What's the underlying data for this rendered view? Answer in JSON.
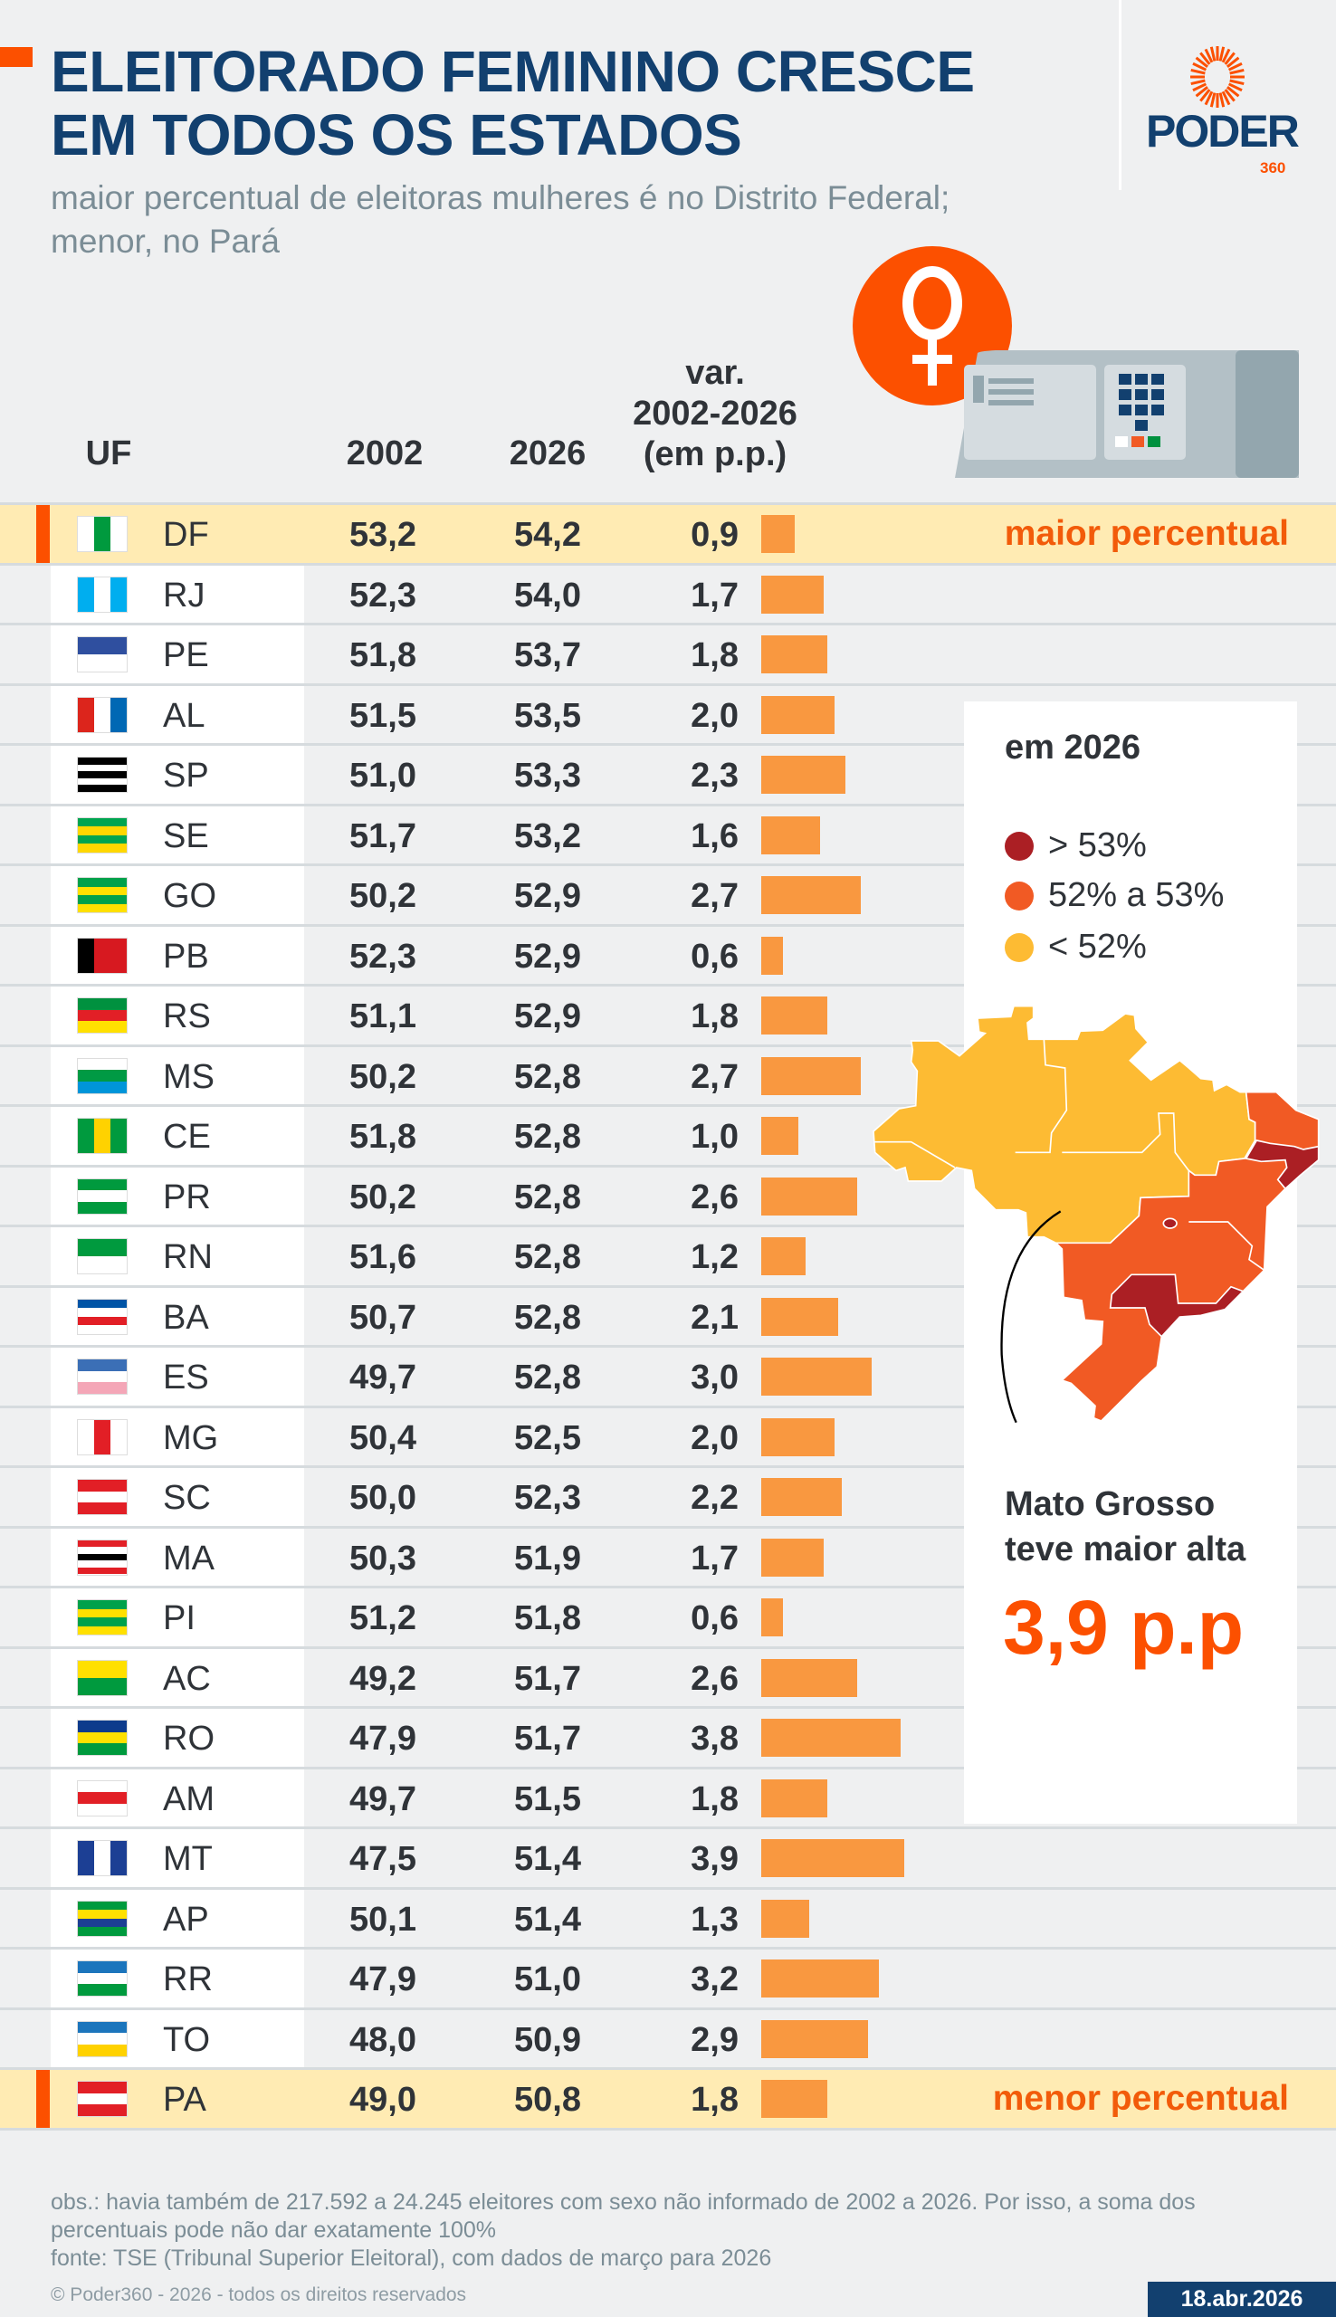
{
  "header": {
    "title_line1": "ELEITORADO FEMININO CRESCE",
    "title_line2": "EM TODOS OS ESTADOS",
    "subtitle": "maior percentual de eleitoras mulheres é no Distrito Federal; menor, no Pará"
  },
  "logo": {
    "name": "PODER",
    "number": "360"
  },
  "colors": {
    "navy": "#12406f",
    "accent": "#fc5000",
    "bar": "#f99840",
    "highlight": "#ffebb3",
    "above53": "#ab1f24",
    "from52to53": "#f15a24",
    "below52": "#fdbb33"
  },
  "chart_data": {
    "type": "table",
    "columns": [
      "UF",
      "2002",
      "2026",
      "var. 2002-2026 (em p.p.)"
    ],
    "var_header": [
      "var.",
      "2002-2026",
      "(em p.p.)"
    ],
    "rows": [
      {
        "uf": "DF",
        "y2002": "53,2",
        "y2026": "54,2",
        "var": "0,9",
        "v": 0.9,
        "highlight": "maior percentual",
        "flag": [
          "#ffffff",
          "#009a3e",
          "#ffffff"
        ]
      },
      {
        "uf": "RJ",
        "y2002": "52,3",
        "y2026": "54,0",
        "var": "1,7",
        "v": 1.7,
        "flag": [
          "#00aeef",
          "#ffffff",
          "#00aeef"
        ]
      },
      {
        "uf": "PE",
        "y2002": "51,8",
        "y2026": "53,7",
        "var": "1,8",
        "v": 1.8,
        "flag": [
          "#2f4f9f",
          "#ffffff"
        ],
        "dir": "h"
      },
      {
        "uf": "AL",
        "y2002": "51,5",
        "y2026": "53,5",
        "var": "2,0",
        "v": 2.0,
        "flag": [
          "#dc251c",
          "#ffffff",
          "#0068b4"
        ]
      },
      {
        "uf": "SP",
        "y2002": "51,0",
        "y2026": "53,3",
        "var": "2,3",
        "v": 2.3,
        "flag": [
          "#000000",
          "#ffffff",
          "#000000",
          "#ffffff",
          "#000000"
        ],
        "dir": "h"
      },
      {
        "uf": "SE",
        "y2002": "51,7",
        "y2026": "53,2",
        "var": "1,6",
        "v": 1.6,
        "flag": [
          "#00a550",
          "#ffd700",
          "#00a550",
          "#ffd700"
        ],
        "dir": "h"
      },
      {
        "uf": "GO",
        "y2002": "50,2",
        "y2026": "52,9",
        "var": "2,7",
        "v": 2.7,
        "flag": [
          "#00a14b",
          "#ffe000",
          "#00a14b",
          "#ffe000"
        ],
        "dir": "h"
      },
      {
        "uf": "PB",
        "y2002": "52,3",
        "y2026": "52,9",
        "var": "0,6",
        "v": 0.6,
        "flag": [
          "#000000",
          "#d71920",
          "#d71920"
        ]
      },
      {
        "uf": "RS",
        "y2002": "51,1",
        "y2026": "52,9",
        "var": "1,8",
        "v": 1.8,
        "flag": [
          "#00913f",
          "#e21f26",
          "#ffe000"
        ],
        "dir": "h"
      },
      {
        "uf": "MS",
        "y2002": "50,2",
        "y2026": "52,8",
        "var": "2,7",
        "v": 2.7,
        "flag": [
          "#ffffff",
          "#009a44",
          "#0095d9"
        ],
        "dir": "h"
      },
      {
        "uf": "CE",
        "y2002": "51,8",
        "y2026": "52,8",
        "var": "1,0",
        "v": 1.0,
        "flag": [
          "#009a3e",
          "#ffd200",
          "#009a3e"
        ]
      },
      {
        "uf": "PR",
        "y2002": "50,2",
        "y2026": "52,8",
        "var": "2,6",
        "v": 2.6,
        "flag": [
          "#009a3e",
          "#ffffff",
          "#009a3e"
        ],
        "dir": "h"
      },
      {
        "uf": "RN",
        "y2002": "51,6",
        "y2026": "52,8",
        "var": "1,2",
        "v": 1.2,
        "flag": [
          "#009a3e",
          "#ffffff"
        ],
        "dir": "h"
      },
      {
        "uf": "BA",
        "y2002": "50,7",
        "y2026": "52,8",
        "var": "2,1",
        "v": 2.1,
        "flag": [
          "#0054a6",
          "#ffffff",
          "#e21f26",
          "#ffffff"
        ],
        "dir": "h"
      },
      {
        "uf": "ES",
        "y2002": "49,7",
        "y2026": "52,8",
        "var": "3,0",
        "v": 3.0,
        "flag": [
          "#3b6fb6",
          "#ffffff",
          "#f4a6b7"
        ],
        "dir": "h"
      },
      {
        "uf": "MG",
        "y2002": "50,4",
        "y2026": "52,5",
        "var": "2,0",
        "v": 2.0,
        "flag": [
          "#ffffff",
          "#e21f26",
          "#ffffff"
        ]
      },
      {
        "uf": "SC",
        "y2002": "50,0",
        "y2026": "52,3",
        "var": "2,2",
        "v": 2.2,
        "flag": [
          "#e21f26",
          "#ffffff",
          "#e21f26"
        ],
        "dir": "h"
      },
      {
        "uf": "MA",
        "y2002": "50,3",
        "y2026": "51,9",
        "var": "1,7",
        "v": 1.7,
        "flag": [
          "#e21f26",
          "#ffffff",
          "#000000",
          "#ffffff",
          "#e21f26"
        ],
        "dir": "h"
      },
      {
        "uf": "PI",
        "y2002": "51,2",
        "y2026": "51,8",
        "var": "0,6",
        "v": 0.6,
        "flag": [
          "#00a14b",
          "#ffe000",
          "#00a14b",
          "#ffe000"
        ],
        "dir": "h"
      },
      {
        "uf": "AC",
        "y2002": "49,2",
        "y2026": "51,7",
        "var": "2,6",
        "v": 2.6,
        "flag": [
          "#ffe000",
          "#009a3e"
        ],
        "dir": "h"
      },
      {
        "uf": "RO",
        "y2002": "47,9",
        "y2026": "51,7",
        "var": "3,8",
        "v": 3.8,
        "flag": [
          "#0d3b8c",
          "#ffe000",
          "#009a3e"
        ],
        "dir": "h"
      },
      {
        "uf": "AM",
        "y2002": "49,7",
        "y2026": "51,5",
        "var": "1,8",
        "v": 1.8,
        "flag": [
          "#ffffff",
          "#e21f26",
          "#ffffff"
        ],
        "dir": "h"
      },
      {
        "uf": "MT",
        "y2002": "47,5",
        "y2026": "51,4",
        "var": "3,9",
        "v": 3.9,
        "flag": [
          "#1c3f94",
          "#ffffff",
          "#1c3f94"
        ]
      },
      {
        "uf": "AP",
        "y2002": "50,1",
        "y2026": "51,4",
        "var": "1,3",
        "v": 1.3,
        "flag": [
          "#009a3e",
          "#ffe000",
          "#1c3f94",
          "#009a3e"
        ],
        "dir": "h"
      },
      {
        "uf": "RR",
        "y2002": "47,9",
        "y2026": "51,0",
        "var": "3,2",
        "v": 3.2,
        "flag": [
          "#1c75bc",
          "#ffffff",
          "#009a3e"
        ],
        "dir": "h"
      },
      {
        "uf": "TO",
        "y2002": "48,0",
        "y2026": "50,9",
        "var": "2,9",
        "v": 2.9,
        "flag": [
          "#1c75bc",
          "#ffffff",
          "#ffd200"
        ],
        "dir": "h"
      },
      {
        "uf": "PA",
        "y2002": "49,0",
        "y2026": "50,8",
        "var": "1,8",
        "v": 1.8,
        "highlight": "menor percentual",
        "flag": [
          "#e21f26",
          "#ffffff",
          "#e21f26"
        ],
        "dir": "h"
      }
    ]
  },
  "legend": {
    "title": "em 2026",
    "items": [
      {
        "label": "> 53%",
        "color": "#ab1f24"
      },
      {
        "label": "52% a 53%",
        "color": "#f15a24"
      },
      {
        "label": "< 52%",
        "color": "#fdbb33"
      }
    ]
  },
  "callout": {
    "line1": "Mato Grosso",
    "line2": "teve maior alta",
    "value": "3,9 p.p"
  },
  "footer": {
    "obs": "obs.: havia também de 217.592  a 24.245 eleitores com sexo não informado de 2002 a 2026. Por isso, a soma dos percentuais pode não dar exatamente 100%",
    "source": "fonte: TSE (Tribunal Superior Eleitoral), com dados de março para 2026",
    "copyright": "© Poder360 - 2026 - todos os direitos reservados",
    "date": "18.abr.2026"
  }
}
